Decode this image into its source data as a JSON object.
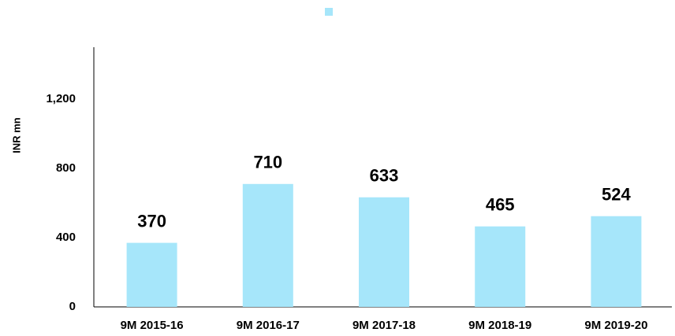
{
  "chart_data": {
    "type": "bar",
    "y_label": "INR mn",
    "categories": [
      "9M 2015-16",
      "9M 2016-17",
      "9M 2017-18",
      "9M 2018-19",
      "9M 2019-20"
    ],
    "values": [
      370,
      710,
      633,
      465,
      524
    ],
    "color": "#a6e6fa",
    "ylim": [
      0,
      1500
    ],
    "yticks": [
      0,
      400,
      800,
      {
        "value": 1200,
        "label": "1,200"
      }
    ],
    "grid": false
  }
}
